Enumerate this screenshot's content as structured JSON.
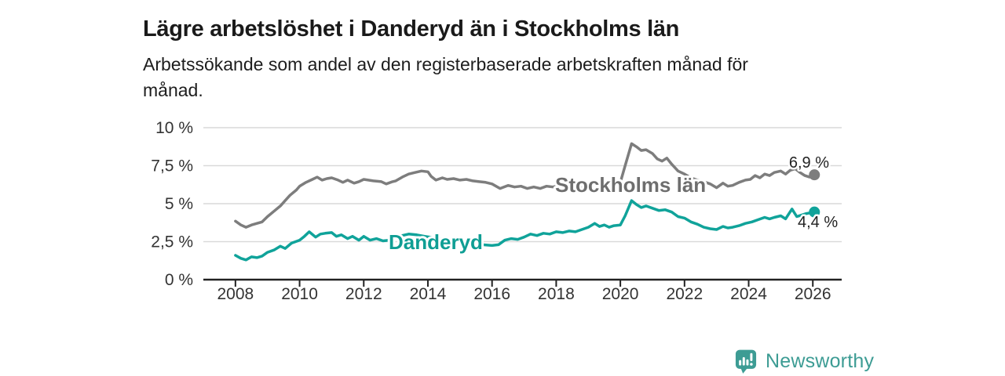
{
  "header": {
    "title": "Lägre arbetslöshet i Danderyd än i Stockholms län",
    "subtitle_line1": "Arbetssökande som andel av den registerbaserade arbetskraften månad för",
    "subtitle_line2": "månad."
  },
  "branding": {
    "logo_text": "Newsworthy",
    "logo_icon": "newsworthy-speech-bubble-bar-chart-icon"
  },
  "colors": {
    "stockholm_line": "#7d7d7d",
    "stockholm_label": "#6e6e6e",
    "danderyd_line": "#10a39a",
    "danderyd_label": "#0f9e94",
    "grid": "#d9d9d9",
    "axis": "#222222",
    "tick_text": "#333333",
    "logo_teal": "#3d9c94"
  },
  "chart_data": {
    "type": "line",
    "title": "Lägre arbetslöshet i Danderyd än i Stockholms län",
    "xlabel": "",
    "ylabel": "Arbetssökande som andel av den registerbaserade arbetskraften",
    "x_unit": "decimal year (monthly data)",
    "xlim": [
      2007.0,
      2026.9
    ],
    "ylim": [
      0,
      10
    ],
    "grid": "horizontal",
    "legend_position": "inline-labels-on-lines",
    "x_ticks": [
      {
        "v": 2008,
        "label": "2008"
      },
      {
        "v": 2010,
        "label": "2010"
      },
      {
        "v": 2012,
        "label": "2012"
      },
      {
        "v": 2014,
        "label": "2014"
      },
      {
        "v": 2016,
        "label": "2016"
      },
      {
        "v": 2018,
        "label": "2018"
      },
      {
        "v": 2020,
        "label": "2020"
      },
      {
        "v": 2022,
        "label": "2022"
      },
      {
        "v": 2024,
        "label": "2024"
      },
      {
        "v": 2026,
        "label": "2026"
      }
    ],
    "y_ticks": [
      {
        "v": 0,
        "label": "0 %"
      },
      {
        "v": 2.5,
        "label": "2,5 %"
      },
      {
        "v": 5,
        "label": "5 %"
      },
      {
        "v": 7.5,
        "label": "7,5 %"
      },
      {
        "v": 10,
        "label": "10 %"
      }
    ],
    "series": [
      {
        "name": "Stockholms län",
        "color": "#7d7d7d",
        "end_label": "6,9 %",
        "end_value": 6.9,
        "points": [
          [
            2008.0,
            3.85
          ],
          [
            2008.17,
            3.6
          ],
          [
            2008.33,
            3.45
          ],
          [
            2008.5,
            3.6
          ],
          [
            2008.67,
            3.7
          ],
          [
            2008.83,
            3.8
          ],
          [
            2009.0,
            4.15
          ],
          [
            2009.2,
            4.5
          ],
          [
            2009.4,
            4.85
          ],
          [
            2009.55,
            5.2
          ],
          [
            2009.7,
            5.55
          ],
          [
            2009.9,
            5.9
          ],
          [
            2010.0,
            6.15
          ],
          [
            2010.2,
            6.4
          ],
          [
            2010.4,
            6.6
          ],
          [
            2010.55,
            6.75
          ],
          [
            2010.7,
            6.55
          ],
          [
            2010.85,
            6.65
          ],
          [
            2011.0,
            6.7
          ],
          [
            2011.2,
            6.55
          ],
          [
            2011.35,
            6.4
          ],
          [
            2011.5,
            6.55
          ],
          [
            2011.7,
            6.35
          ],
          [
            2011.85,
            6.45
          ],
          [
            2012.0,
            6.6
          ],
          [
            2012.3,
            6.5
          ],
          [
            2012.55,
            6.45
          ],
          [
            2012.7,
            6.3
          ],
          [
            2012.9,
            6.45
          ],
          [
            2013.0,
            6.5
          ],
          [
            2013.2,
            6.75
          ],
          [
            2013.4,
            6.95
          ],
          [
            2013.6,
            7.05
          ],
          [
            2013.8,
            7.15
          ],
          [
            2014.0,
            7.1
          ],
          [
            2014.1,
            6.8
          ],
          [
            2014.25,
            6.55
          ],
          [
            2014.45,
            6.7
          ],
          [
            2014.6,
            6.6
          ],
          [
            2014.8,
            6.65
          ],
          [
            2015.0,
            6.55
          ],
          [
            2015.2,
            6.6
          ],
          [
            2015.4,
            6.5
          ],
          [
            2015.6,
            6.45
          ],
          [
            2015.8,
            6.4
          ],
          [
            2016.0,
            6.3
          ],
          [
            2016.25,
            6.0
          ],
          [
            2016.5,
            6.2
          ],
          [
            2016.7,
            6.1
          ],
          [
            2016.9,
            6.15
          ],
          [
            2017.1,
            6.0
          ],
          [
            2017.3,
            6.1
          ],
          [
            2017.5,
            6.0
          ],
          [
            2017.7,
            6.15
          ],
          [
            2017.9,
            6.1
          ],
          [
            2018.1,
            6.2
          ],
          [
            2018.35,
            6.05
          ],
          [
            2018.6,
            6.1
          ],
          [
            2018.85,
            6.05
          ],
          [
            2019.1,
            6.15
          ],
          [
            2019.35,
            6.1
          ],
          [
            2019.6,
            6.15
          ],
          [
            2019.8,
            6.25
          ],
          [
            2020.0,
            6.4
          ],
          [
            2020.15,
            7.5
          ],
          [
            2020.35,
            8.95
          ],
          [
            2020.5,
            8.75
          ],
          [
            2020.65,
            8.5
          ],
          [
            2020.8,
            8.55
          ],
          [
            2021.0,
            8.3
          ],
          [
            2021.15,
            7.95
          ],
          [
            2021.3,
            7.8
          ],
          [
            2021.45,
            8.0
          ],
          [
            2021.6,
            7.6
          ],
          [
            2021.8,
            7.15
          ],
          [
            2022.0,
            6.95
          ],
          [
            2022.2,
            6.7
          ],
          [
            2022.4,
            6.55
          ],
          [
            2022.6,
            6.45
          ],
          [
            2022.8,
            6.3
          ],
          [
            2023.0,
            6.05
          ],
          [
            2023.2,
            6.35
          ],
          [
            2023.35,
            6.15
          ],
          [
            2023.5,
            6.2
          ],
          [
            2023.7,
            6.4
          ],
          [
            2023.9,
            6.55
          ],
          [
            2024.05,
            6.6
          ],
          [
            2024.2,
            6.85
          ],
          [
            2024.35,
            6.7
          ],
          [
            2024.5,
            6.95
          ],
          [
            2024.65,
            6.85
          ],
          [
            2024.8,
            7.05
          ],
          [
            2025.0,
            7.15
          ],
          [
            2025.15,
            6.95
          ],
          [
            2025.3,
            7.2
          ],
          [
            2025.45,
            7.3
          ],
          [
            2025.6,
            7.05
          ],
          [
            2025.75,
            6.85
          ],
          [
            2025.9,
            6.75
          ],
          [
            2026.05,
            6.9
          ]
        ]
      },
      {
        "name": "Danderyd",
        "color": "#10a39a",
        "end_label": "4,4 %",
        "end_value": 4.4,
        "points": [
          [
            2008.0,
            1.6
          ],
          [
            2008.17,
            1.4
          ],
          [
            2008.33,
            1.3
          ],
          [
            2008.5,
            1.5
          ],
          [
            2008.67,
            1.45
          ],
          [
            2008.83,
            1.55
          ],
          [
            2009.0,
            1.8
          ],
          [
            2009.2,
            1.95
          ],
          [
            2009.4,
            2.2
          ],
          [
            2009.55,
            2.05
          ],
          [
            2009.75,
            2.4
          ],
          [
            2010.0,
            2.6
          ],
          [
            2010.15,
            2.85
          ],
          [
            2010.3,
            3.15
          ],
          [
            2010.5,
            2.8
          ],
          [
            2010.65,
            3.0
          ],
          [
            2010.8,
            3.05
          ],
          [
            2011.0,
            3.1
          ],
          [
            2011.15,
            2.85
          ],
          [
            2011.3,
            2.95
          ],
          [
            2011.5,
            2.7
          ],
          [
            2011.65,
            2.85
          ],
          [
            2011.85,
            2.6
          ],
          [
            2012.0,
            2.85
          ],
          [
            2012.2,
            2.6
          ],
          [
            2012.4,
            2.7
          ],
          [
            2012.6,
            2.55
          ],
          [
            2012.8,
            2.6
          ],
          [
            2013.0,
            2.75
          ],
          [
            2013.2,
            2.9
          ],
          [
            2013.4,
            3.0
          ],
          [
            2013.65,
            2.95
          ],
          [
            2013.9,
            2.85
          ],
          [
            2014.2,
            2.75
          ],
          [
            2014.5,
            2.65
          ],
          [
            2014.8,
            2.55
          ],
          [
            2015.1,
            2.5
          ],
          [
            2015.4,
            2.45
          ],
          [
            2015.7,
            2.3
          ],
          [
            2016.0,
            2.25
          ],
          [
            2016.2,
            2.3
          ],
          [
            2016.4,
            2.6
          ],
          [
            2016.6,
            2.7
          ],
          [
            2016.8,
            2.65
          ],
          [
            2017.0,
            2.8
          ],
          [
            2017.2,
            3.0
          ],
          [
            2017.4,
            2.9
          ],
          [
            2017.6,
            3.05
          ],
          [
            2017.8,
            3.0
          ],
          [
            2018.0,
            3.15
          ],
          [
            2018.2,
            3.1
          ],
          [
            2018.4,
            3.2
          ],
          [
            2018.6,
            3.15
          ],
          [
            2018.8,
            3.3
          ],
          [
            2019.0,
            3.45
          ],
          [
            2019.2,
            3.7
          ],
          [
            2019.35,
            3.5
          ],
          [
            2019.5,
            3.6
          ],
          [
            2019.65,
            3.45
          ],
          [
            2019.8,
            3.55
          ],
          [
            2020.0,
            3.6
          ],
          [
            2020.15,
            4.2
          ],
          [
            2020.35,
            5.2
          ],
          [
            2020.5,
            4.95
          ],
          [
            2020.65,
            4.75
          ],
          [
            2020.8,
            4.85
          ],
          [
            2021.0,
            4.7
          ],
          [
            2021.2,
            4.55
          ],
          [
            2021.4,
            4.6
          ],
          [
            2021.6,
            4.45
          ],
          [
            2021.8,
            4.15
          ],
          [
            2022.0,
            4.05
          ],
          [
            2022.2,
            3.8
          ],
          [
            2022.4,
            3.65
          ],
          [
            2022.6,
            3.45
          ],
          [
            2022.8,
            3.35
          ],
          [
            2023.0,
            3.3
          ],
          [
            2023.2,
            3.5
          ],
          [
            2023.35,
            3.4
          ],
          [
            2023.5,
            3.45
          ],
          [
            2023.7,
            3.55
          ],
          [
            2023.9,
            3.7
          ],
          [
            2024.1,
            3.8
          ],
          [
            2024.3,
            3.95
          ],
          [
            2024.5,
            4.1
          ],
          [
            2024.65,
            4.0
          ],
          [
            2024.8,
            4.1
          ],
          [
            2025.0,
            4.2
          ],
          [
            2025.15,
            4.0
          ],
          [
            2025.35,
            4.65
          ],
          [
            2025.5,
            4.15
          ],
          [
            2025.65,
            4.25
          ],
          [
            2025.8,
            4.35
          ],
          [
            2026.05,
            4.45
          ]
        ]
      }
    ]
  }
}
